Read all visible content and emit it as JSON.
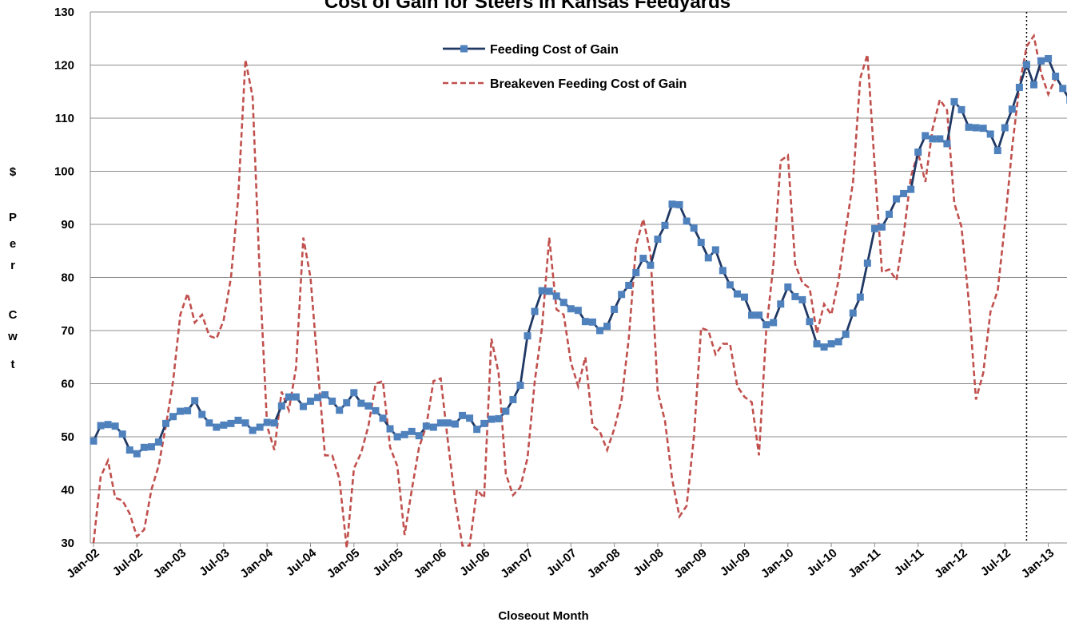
{
  "chart_data": {
    "type": "line",
    "title": "Cost of Gain for Steers in Kansas Feedyards",
    "xlabel": "Closeout Month",
    "ylabel": "$ Per Cwt",
    "ylabel_letters": [
      "$",
      "P",
      "e",
      "r",
      "C",
      "w",
      "t"
    ],
    "ylim": [
      30,
      130
    ],
    "yticks": [
      30,
      40,
      50,
      60,
      70,
      80,
      90,
      100,
      110,
      120,
      130
    ],
    "grid": true,
    "legend_position": "top-center",
    "x_tick_labels": [
      "Jan-02",
      "Jul-02",
      "Jan-03",
      "Jul-03",
      "Jan-04",
      "Jul-04",
      "Jan-05",
      "Jul-05",
      "Jan-06",
      "Jul-06",
      "Jan-07",
      "Jul-07",
      "Jan-08",
      "Jul-08",
      "Jan-09",
      "Jul-09",
      "Jan-10",
      "Jul-10",
      "Jan-11",
      "Jul-11",
      "Jan-12",
      "Jul-12",
      "Jan-13"
    ],
    "start_month": "Jan-02",
    "vertical_marker_month": "Oct-12",
    "series": [
      {
        "name": "Feeding Cost of Gain",
        "color": "#1f3864",
        "marker_color": "#4f81bd",
        "style": "solid-square-markers",
        "values": [
          49.2,
          52.1,
          52.3,
          52.0,
          50.5,
          47.5,
          46.8,
          48.0,
          48.1,
          49.0,
          52.5,
          53.8,
          54.8,
          54.9,
          56.8,
          54.2,
          52.6,
          51.8,
          52.2,
          52.5,
          53.1,
          52.6,
          51.2,
          51.8,
          52.7,
          52.6,
          55.8,
          57.5,
          57.5,
          55.7,
          56.7,
          57.4,
          57.9,
          56.7,
          55.0,
          56.4,
          58.3,
          56.3,
          55.8,
          54.9,
          53.5,
          51.5,
          50.0,
          50.4,
          51.0,
          50.2,
          52.0,
          51.8,
          52.6,
          52.6,
          52.4,
          54.0,
          53.5,
          51.4,
          52.5,
          53.3,
          53.4,
          54.8,
          57.0,
          59.7,
          69.0,
          73.6,
          77.5,
          77.4,
          76.5,
          75.3,
          74.1,
          73.8,
          71.7,
          71.6,
          70.0,
          70.8,
          74.0,
          76.8,
          78.5,
          80.9,
          83.6,
          82.3,
          87.2,
          89.8,
          93.8,
          93.7,
          90.6,
          89.3,
          86.6,
          83.7,
          85.2,
          81.3,
          78.6,
          76.9,
          76.3,
          72.9,
          72.9,
          71.1,
          71.5,
          75.0,
          78.2,
          76.4,
          75.8,
          71.7,
          67.5,
          66.9,
          67.5,
          67.9,
          69.3,
          73.3,
          76.3,
          82.7,
          89.2,
          89.5,
          91.9,
          94.8,
          95.8,
          96.6,
          103.6,
          106.7,
          106.1,
          106.1,
          105.2,
          113.1,
          111.6,
          108.3,
          108.2,
          108.1,
          107.0,
          103.9,
          108.2,
          111.7,
          115.8,
          120.1,
          116.3,
          120.8,
          121.2,
          117.9,
          115.6,
          113.4
        ]
      },
      {
        "name": "Breakeven Feeding Cost of Gain",
        "color": "#c0504d",
        "style": "dashed",
        "values": [
          30.0,
          42.5,
          45.5,
          38.5,
          38.0,
          35.5,
          31.2,
          32.5,
          40.0,
          44.5,
          52.0,
          60.5,
          73.0,
          77.0,
          71.5,
          73.0,
          69.0,
          68.5,
          72.0,
          80.0,
          95.0,
          121.0,
          114.0,
          80.0,
          52.0,
          47.5,
          58.5,
          55.0,
          63.0,
          87.5,
          80.0,
          63.0,
          46.5,
          46.5,
          42.0,
          29.0,
          44.0,
          47.0,
          52.0,
          60.0,
          60.5,
          48.0,
          44.5,
          31.5,
          40.0,
          48.0,
          52.0,
          60.5,
          61.0,
          49.0,
          38.0,
          29.5,
          29.5,
          40.0,
          38.5,
          68.5,
          62.0,
          43.0,
          39.0,
          40.5,
          46.0,
          60.5,
          70.5,
          87.5,
          74.0,
          73.0,
          64.0,
          59.5,
          65.0,
          52.0,
          51.0,
          47.5,
          51.5,
          57.0,
          68.5,
          86.0,
          91.0,
          84.5,
          58.5,
          53.0,
          42.0,
          35.0,
          37.0,
          50.0,
          70.5,
          70.0,
          65.5,
          67.5,
          67.5,
          59.5,
          57.5,
          56.5,
          46.5,
          70.0,
          82.5,
          102.0,
          103.0,
          82.5,
          79.0,
          78.0,
          69.5,
          75.0,
          73.0,
          79.5,
          89.0,
          98.0,
          117.5,
          122.0,
          101.0,
          81.0,
          81.5,
          79.5,
          88.0,
          99.0,
          103.5,
          98.0,
          108.0,
          113.5,
          111.5,
          94.0,
          89.5,
          75.5,
          57.0,
          62.0,
          73.5,
          77.5,
          90.0,
          104.5,
          116.0,
          123.5,
          125.5,
          118.5,
          114.5,
          117.5
        ]
      }
    ]
  }
}
